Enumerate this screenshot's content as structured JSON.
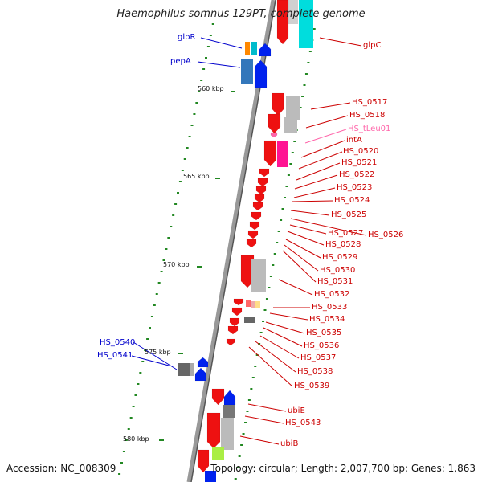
{
  "title": "Haemophilus somnus 129PT, complete genome",
  "footer": {
    "accession": "Accession: NC_008309",
    "topology": "Topology: circular; Length: 2,007,700 bp; Genes: 1,863"
  },
  "ruler": [
    "560 kbp",
    "565 kbp",
    "570 kbp",
    "575 kbp",
    "580 kbp"
  ],
  "colors": {
    "forward_label": "#0000cc",
    "reverse_label": "#cc0000",
    "trna_label": "#ff66aa",
    "backbone": "#808080",
    "gc_tick": "#228822"
  },
  "labels": {
    "forward": [
      "glpR",
      "pepA",
      "HS_0540",
      "HS_0541"
    ],
    "reverse": [
      "glpC",
      "HS_0517",
      "HS_0518",
      "intA",
      "HS_0520",
      "HS_0521",
      "HS_0522",
      "HS_0523",
      "HS_0524",
      "HS_0525",
      "HS_0526",
      "HS_0527",
      "HS_0528",
      "HS_0529",
      "HS_0530",
      "HS_0531",
      "HS_0532",
      "HS_0533",
      "HS_0534",
      "HS_0535",
      "HS_0536",
      "HS_0537",
      "HS_0538",
      "HS_0539",
      "ubiE",
      "HS_0543",
      "ubiB"
    ],
    "trna": [
      "HS_tLeu01"
    ]
  }
}
